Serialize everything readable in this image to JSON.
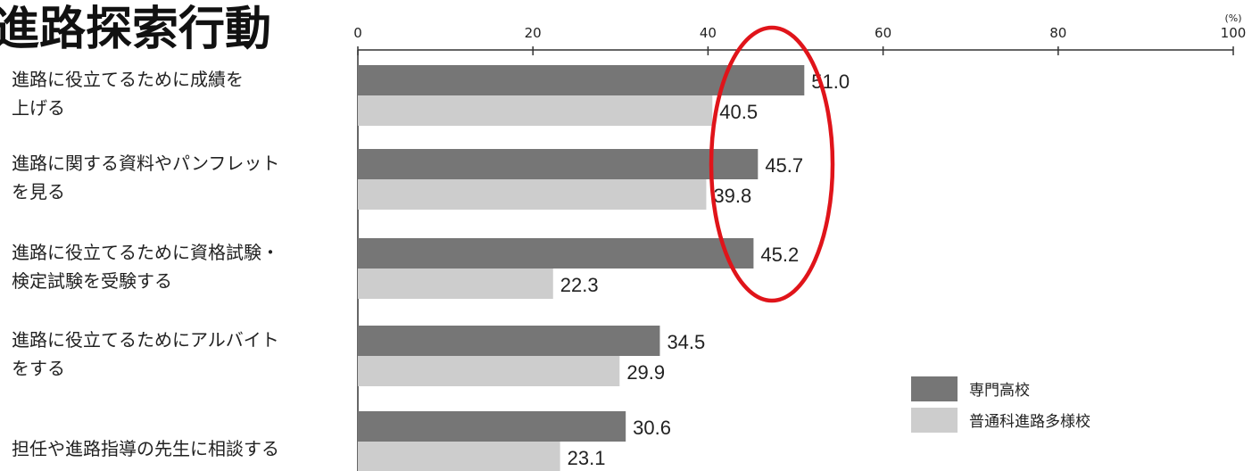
{
  "colors": {
    "series1": "#767676",
    "series2": "#cdcdcd",
    "highlight": "#e0141a",
    "axis": "#333333"
  },
  "chart_data": {
    "type": "bar",
    "orientation": "horizontal",
    "title": "進路探索行動",
    "unit": "(%)",
    "xlim": [
      0,
      100
    ],
    "ticks": [
      0,
      20,
      40,
      60,
      80,
      100
    ],
    "categories": [
      [
        "進路に役立てるために成績を",
        "上げる"
      ],
      [
        "進路に関する資料やパンフレット",
        "を見る"
      ],
      [
        "進路に役立てるために資格試験・",
        "検定試験を受験する"
      ],
      [
        "進路に役立てるためにアルバイト",
        "をする"
      ],
      [
        "担任や進路指導の先生に相談する"
      ]
    ],
    "series": [
      {
        "name": "専門高校",
        "values": [
          51.0,
          45.7,
          45.2,
          34.5,
          30.6
        ]
      },
      {
        "name": "普通科進路多様校",
        "values": [
          40.5,
          39.8,
          22.3,
          29.9,
          23.1
        ]
      }
    ],
    "legend": "bottom-right",
    "grid": false,
    "annotation": "red-ellipse-around-top-three-specialist-values"
  }
}
